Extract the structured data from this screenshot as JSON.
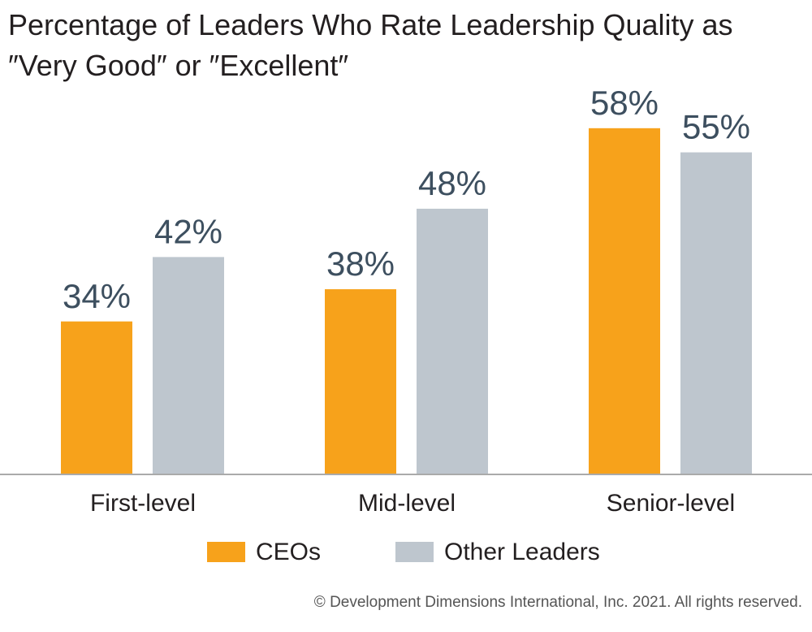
{
  "chart_data": {
    "type": "bar",
    "title": "Percentage of Leaders Who Rate Leadership Quality as ″Very Good″ or ″Excellent″",
    "categories": [
      "First-level",
      "Mid-level",
      "Senior-level"
    ],
    "series": [
      {
        "name": "CEOs",
        "color": "#f7a21b",
        "values": [
          34,
          38,
          58
        ],
        "value_labels": [
          "34%",
          "38%",
          "58%"
        ]
      },
      {
        "name": "Other Leaders",
        "color": "#bec6ce",
        "values": [
          42,
          48,
          55
        ],
        "value_labels": [
          "42%",
          "48%",
          "55%"
        ]
      }
    ],
    "ylim": [
      15,
      60
    ],
    "footer": "© Development Dimensions International, Inc. 2021. All rights reserved."
  }
}
